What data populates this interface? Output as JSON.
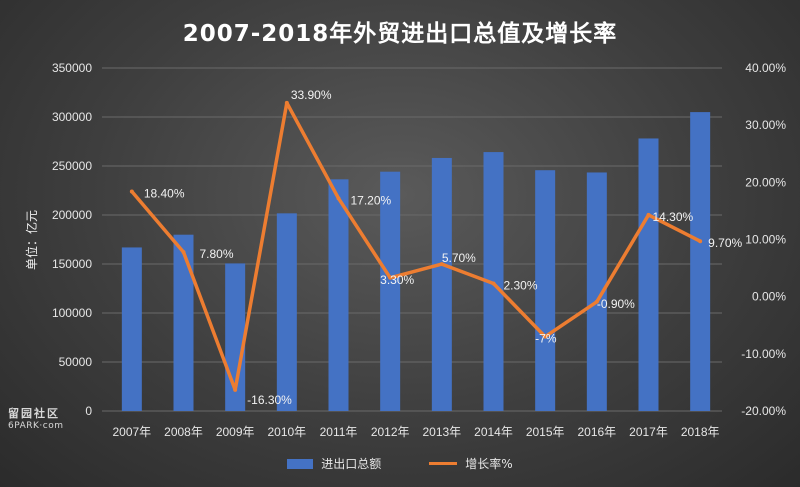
{
  "title": "2007-2018年外贸进出口总值及增长率",
  "watermark": {
    "cn": "留园社区",
    "en": "6PARK·com"
  },
  "colors": {
    "bar": "#4472c4",
    "line": "#ed7d31",
    "grid": "#6a6a6a"
  },
  "chart_data": {
    "type": "bar+line",
    "title": "2007-2018年外贸进出口总值及增长率",
    "categories": [
      "2007年",
      "2008年",
      "2009年",
      "2010年",
      "2011年",
      "2012年",
      "2013年",
      "2014年",
      "2015年",
      "2016年",
      "2017年",
      "2018年"
    ],
    "ylabel": "单位：亿元",
    "ylim": [
      0,
      350000
    ],
    "y_ticks": [
      "350000",
      "300000",
      "250000",
      "200000",
      "150000",
      "100000",
      "50000",
      "0"
    ],
    "y2lim": [
      -20,
      40
    ],
    "y2_ticks": [
      "40.00%",
      "30.00%",
      "20.00%",
      "10.00%",
      "0.00%",
      "-10.00%",
      "-20.00%"
    ],
    "grid": true,
    "legend_position": "bottom",
    "series": [
      {
        "name": "进出口总额",
        "type": "bar",
        "axis": "left",
        "values": [
          166900,
          179900,
          150600,
          201700,
          236400,
          244200,
          258200,
          264200,
          245700,
          243400,
          278100,
          305000
        ]
      },
      {
        "name": "增长率%",
        "type": "line",
        "axis": "right",
        "values": [
          18.4,
          7.8,
          -16.3,
          33.9,
          17.2,
          3.3,
          5.7,
          2.3,
          -7,
          -0.9,
          14.3,
          9.7
        ],
        "labels": [
          "18.40%",
          "7.80%",
          "-16.30%",
          "33.90%",
          "17.20%",
          "3.30%",
          "5.70%",
          "2.30%",
          "-7%",
          "-0.90%",
          "14.30%",
          "9.70%"
        ]
      }
    ]
  },
  "legend": {
    "bar_label": "进出口总额",
    "line_label": "增长率%"
  }
}
